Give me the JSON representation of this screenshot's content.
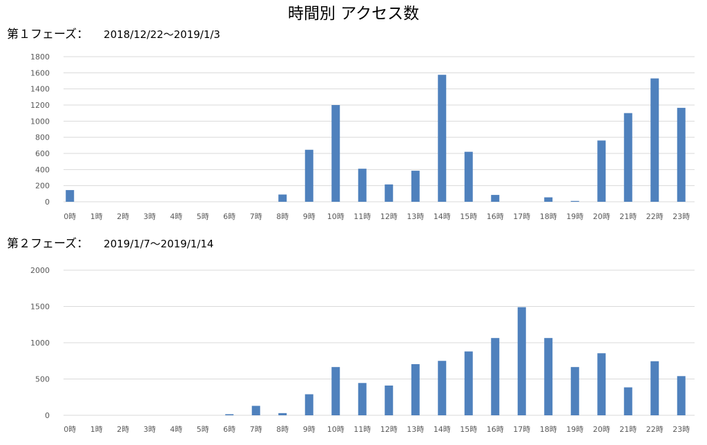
{
  "title": "時間別 アクセス数",
  "charts": [
    {
      "phase_label": "第１フェーズ：",
      "date_range": "2018/12/22～2019/1/3"
    },
    {
      "phase_label": "第２フェーズ：",
      "date_range": "2019/1/7～2019/1/14"
    }
  ],
  "colors": {
    "bar": "#4f81bd",
    "grid": "#d9d9d9",
    "tick_text": "#595959"
  },
  "chart_data": [
    {
      "type": "bar",
      "title": "",
      "xlabel": "",
      "ylabel": "",
      "categories": [
        "0時",
        "1時",
        "2時",
        "3時",
        "4時",
        "5時",
        "6時",
        "7時",
        "8時",
        "9時",
        "10時",
        "11時",
        "12時",
        "13時",
        "14時",
        "15時",
        "16時",
        "17時",
        "18時",
        "19時",
        "20時",
        "21時",
        "22時",
        "23時"
      ],
      "values": [
        145,
        0,
        0,
        0,
        0,
        0,
        0,
        0,
        90,
        645,
        1200,
        410,
        215,
        385,
        1575,
        620,
        85,
        0,
        55,
        10,
        760,
        1100,
        1530,
        1165
      ],
      "ylim": [
        0,
        1800
      ],
      "yticks": [
        0,
        200,
        400,
        600,
        800,
        1000,
        1200,
        1400,
        1600,
        1800
      ],
      "grid": true,
      "legend": "none"
    },
    {
      "type": "bar",
      "title": "",
      "xlabel": "",
      "ylabel": "",
      "categories": [
        "0時",
        "1時",
        "2時",
        "3時",
        "4時",
        "5時",
        "6時",
        "7時",
        "8時",
        "9時",
        "10時",
        "11時",
        "12時",
        "13時",
        "14時",
        "15時",
        "16時",
        "17時",
        "18時",
        "19時",
        "20時",
        "21時",
        "22時",
        "23時"
      ],
      "values": [
        0,
        0,
        0,
        0,
        0,
        0,
        15,
        130,
        30,
        290,
        665,
        445,
        410,
        705,
        750,
        880,
        1065,
        1490,
        1065,
        665,
        855,
        385,
        745,
        540
      ],
      "ylim": [
        0,
        2000
      ],
      "yticks": [
        0,
        500,
        1000,
        1500,
        2000
      ],
      "grid": true,
      "legend": "none"
    }
  ]
}
